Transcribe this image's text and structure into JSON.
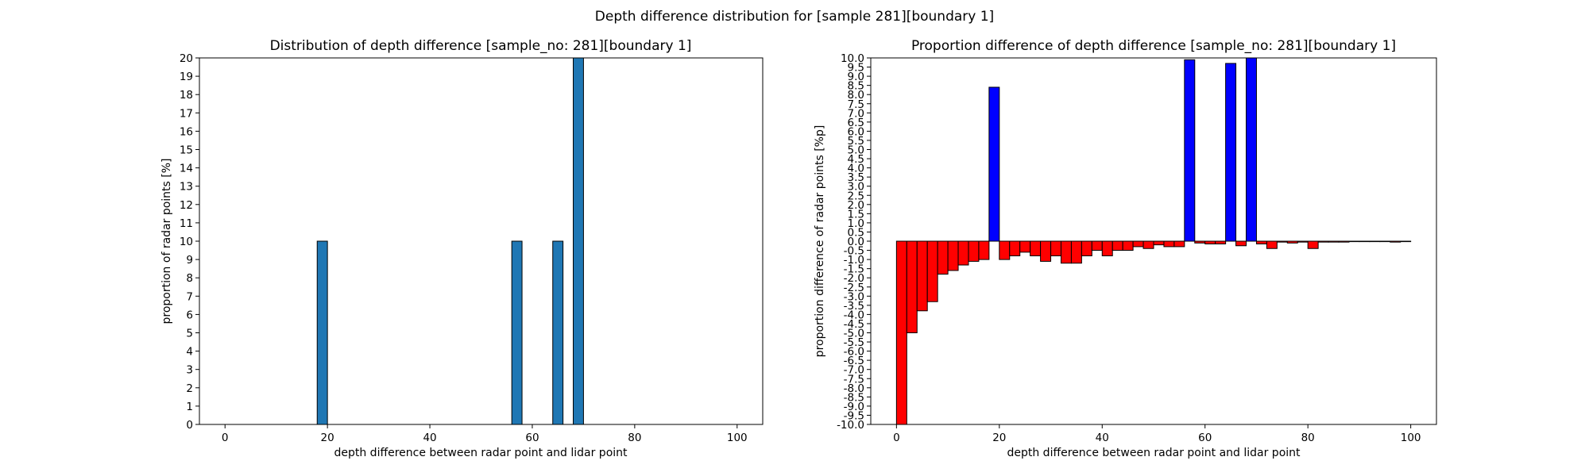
{
  "suptitle": "Depth difference distribution for [sample 281][boundary 1]",
  "chart_data": [
    {
      "type": "bar",
      "title": "Distribution of depth difference [sample_no: 281][boundary 1]",
      "xlabel": "depth difference between radar point and lidar point",
      "ylabel": "proportion of radar points [%]",
      "xlim": [
        -5,
        105
      ],
      "ylim": [
        0,
        20
      ],
      "xticks": [
        0,
        20,
        40,
        60,
        80,
        100
      ],
      "yticks": [
        0,
        1,
        2,
        3,
        4,
        5,
        6,
        7,
        8,
        9,
        10,
        11,
        12,
        13,
        14,
        15,
        16,
        17,
        18,
        19,
        20
      ],
      "bar_width": 2,
      "bars": [
        {
          "x": 19,
          "value": 10
        },
        {
          "x": 57,
          "value": 10
        },
        {
          "x": 65,
          "value": 10
        },
        {
          "x": 69,
          "value": 20
        }
      ],
      "colors": {
        "bar": "#1f77b4",
        "edge": "#000000"
      },
      "grid": false
    },
    {
      "type": "bar",
      "title": "Proportion difference of depth difference [sample_no: 281][boundary 1]",
      "xlabel": "depth difference between radar point and lidar point",
      "ylabel": "proportion difference of radar points [%p]",
      "xlim": [
        -5,
        105
      ],
      "ylim": [
        -10,
        10
      ],
      "xticks": [
        0,
        20,
        40,
        60,
        80,
        100
      ],
      "yticks": [
        "-10.0",
        "-9.5",
        "-9.0",
        "-8.5",
        "-8.0",
        "-7.5",
        "-7.0",
        "-6.5",
        "-6.0",
        "-5.5",
        "-5.0",
        "-4.5",
        "-4.0",
        "-3.5",
        "-3.0",
        "-2.5",
        "-2.0",
        "-1.5",
        "-1.0",
        "-0.5",
        "0.0",
        "0.5",
        "1.0",
        "1.5",
        "2.0",
        "2.5",
        "3.0",
        "3.5",
        "4.0",
        "4.5",
        "5.0",
        "5.5",
        "6.0",
        "6.5",
        "7.0",
        "7.5",
        "8.0",
        "8.5",
        "9.0",
        "9.5",
        "10.0"
      ],
      "bar_width": 2,
      "x": [
        1,
        3,
        5,
        7,
        9,
        11,
        13,
        15,
        17,
        19,
        21,
        23,
        25,
        27,
        29,
        31,
        33,
        35,
        37,
        39,
        41,
        43,
        45,
        47,
        49,
        51,
        53,
        55,
        57,
        59,
        61,
        63,
        65,
        67,
        69,
        71,
        73,
        75,
        77,
        79,
        81,
        83,
        85,
        87,
        89,
        91,
        93,
        95,
        97,
        99
      ],
      "values": [
        -10.0,
        -5.0,
        -3.8,
        -3.3,
        -1.8,
        -1.6,
        -1.3,
        -1.1,
        -1.0,
        8.4,
        -1.0,
        -0.8,
        -0.6,
        -0.8,
        -1.1,
        -0.8,
        -1.2,
        -1.2,
        -0.8,
        -0.5,
        -0.8,
        -0.5,
        -0.5,
        -0.3,
        -0.4,
        -0.2,
        -0.3,
        -0.3,
        9.9,
        -0.1,
        -0.15,
        -0.15,
        9.7,
        -0.25,
        10.0,
        -0.15,
        -0.4,
        -0.05,
        -0.1,
        -0.05,
        -0.4,
        -0.05,
        -0.05,
        -0.05,
        0.0,
        0.0,
        0.0,
        0.0,
        -0.05,
        0.0
      ],
      "colors": {
        "positive": "#0000ff",
        "negative": "#ff0000",
        "edge": "#000000"
      },
      "grid": false
    }
  ]
}
